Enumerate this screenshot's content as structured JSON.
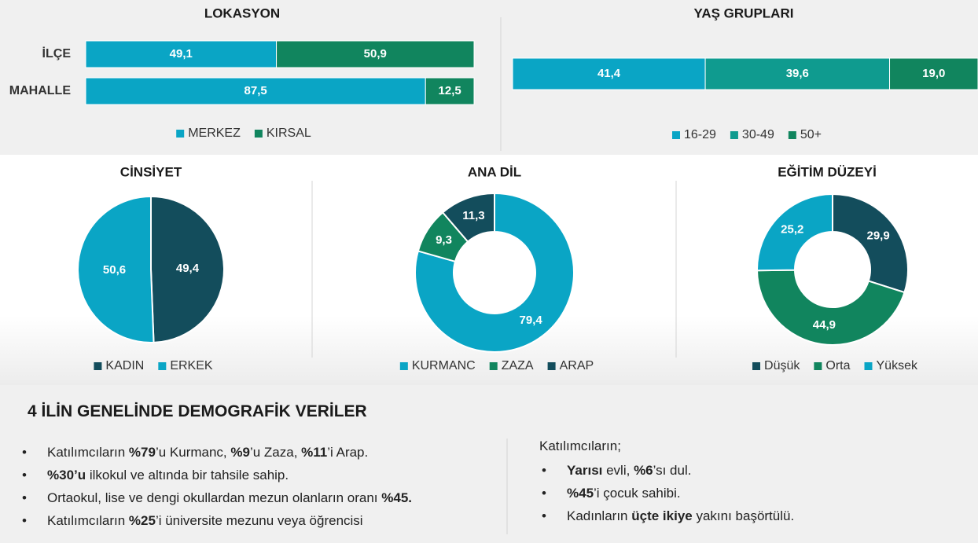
{
  "chart_data": [
    {
      "type": "bar",
      "stacked": true,
      "horizontal": true,
      "title": "LOKASYON",
      "categories": [
        "İLÇE",
        "MAHALLE"
      ],
      "xlim": [
        0,
        100
      ],
      "legend": "bottom",
      "series": [
        {
          "name": "MERKEZ",
          "color": "#0aa5c5",
          "values": [
            49.1,
            87.5
          ],
          "value_labels": [
            "49,1",
            "87,5"
          ]
        },
        {
          "name": "KIRSAL",
          "color": "#11855e",
          "values": [
            50.9,
            12.5
          ],
          "value_labels": [
            "50,9",
            "12,5"
          ]
        }
      ]
    },
    {
      "type": "bar",
      "stacked": true,
      "horizontal": true,
      "title": "YAŞ GRUPLARI",
      "categories": [
        null
      ],
      "xlim": [
        0,
        100
      ],
      "legend": "bottom",
      "series": [
        {
          "name": "16-29",
          "color": "#0aa5c5",
          "values": [
            41.4
          ],
          "value_labels": [
            "41,4"
          ]
        },
        {
          "name": "30-49",
          "color": "#0f9b8f",
          "values": [
            39.6
          ],
          "value_labels": [
            "39,6"
          ]
        },
        {
          "name": "50+",
          "color": "#11855e",
          "values": [
            19.0
          ],
          "value_labels": [
            "19,0"
          ]
        }
      ]
    },
    {
      "type": "pie",
      "title": "CİNSİYET",
      "legend": "bottom",
      "categories": [
        "KADIN",
        "ERKEK"
      ],
      "values": [
        49.4,
        50.6
      ],
      "value_labels": [
        "49,4",
        "50,6"
      ],
      "colors": [
        "#134d5c",
        "#0aa5c5"
      ]
    },
    {
      "type": "donut",
      "title": "ANA DİL",
      "legend": "bottom",
      "categories": [
        "KURMANC",
        "ZAZA",
        "ARAP"
      ],
      "values": [
        79.4,
        9.3,
        11.3
      ],
      "value_labels": [
        "79,4",
        "9,3",
        "11,3"
      ],
      "colors": [
        "#0aa5c5",
        "#11855e",
        "#134d5c"
      ]
    },
    {
      "type": "donut",
      "title": "EĞİTİM DÜZEYİ",
      "legend": "bottom",
      "categories": [
        "Düşük",
        "Orta",
        "Yüksek"
      ],
      "values": [
        29.9,
        44.9,
        25.2
      ],
      "value_labels": [
        "29,9",
        "44,9",
        "25,2"
      ],
      "colors": [
        "#134d5c",
        "#11855e",
        "#0aa5c5"
      ]
    }
  ],
  "summary": {
    "title": "4 İLİN GENELİNDE DEMOGRAFİK VERİLER",
    "left": [
      [
        {
          "text": "Katılımcıların ",
          "bold": false
        },
        {
          "text": "%79",
          "bold": true
        },
        {
          "text": "’u Kurmanc, ",
          "bold": false
        },
        {
          "text": "%9",
          "bold": true
        },
        {
          "text": "’u Zaza, ",
          "bold": false
        },
        {
          "text": "%11",
          "bold": true
        },
        {
          "text": "’i Arap.",
          "bold": false
        }
      ],
      [
        {
          "text": "%30’u",
          "bold": true
        },
        {
          "text": " ilkokul ve altında bir tahsile sahip.",
          "bold": false
        }
      ],
      [
        {
          "text": "Ortaokul, lise ve dengi okullardan mezun olanların oranı ",
          "bold": false
        },
        {
          "text": "%45.",
          "bold": true
        }
      ],
      [
        {
          "text": "Katılımcıların ",
          "bold": false
        },
        {
          "text": "%25",
          "bold": true
        },
        {
          "text": "’i üniversite mezunu veya öğrencisi",
          "bold": false
        }
      ]
    ],
    "right_intro": "Katılımcıların;",
    "right": [
      [
        {
          "text": "Yarısı",
          "bold": true
        },
        {
          "text": " evli, ",
          "bold": false
        },
        {
          "text": "%6",
          "bold": true
        },
        {
          "text": "’sı dul.",
          "bold": false
        }
      ],
      [
        {
          "text": "%45",
          "bold": true
        },
        {
          "text": "’i çocuk sahibi.",
          "bold": false
        }
      ],
      [
        {
          "text": "Kadınların ",
          "bold": false
        },
        {
          "text": "üçte ikiye",
          "bold": true
        },
        {
          "text": " yakını başörtülü.",
          "bold": false
        }
      ]
    ]
  }
}
